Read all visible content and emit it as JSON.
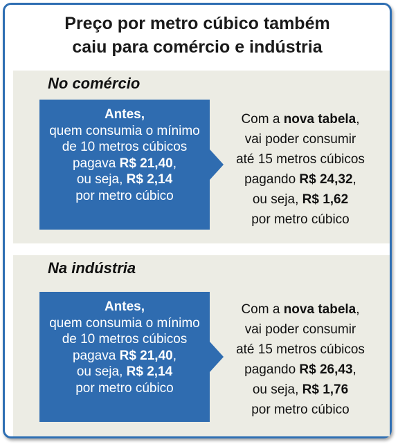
{
  "title": {
    "line1": "Preço por metro cúbico também",
    "line2": "caiu para comércio e indústria"
  },
  "sections": [
    {
      "heading": "No comércio",
      "before": {
        "antes": "Antes,",
        "l2": "quem consumia o mínimo",
        "l3": "de 10 metros cúbicos",
        "l4_pre": "pagava ",
        "l4_value": "R$ 21,40",
        "l4_post": ",",
        "l5_pre": "ou seja, ",
        "l5_value": "R$ 2,14",
        "l6": "por metro cúbico"
      },
      "after": {
        "l1_pre": "Com a ",
        "l1_bold": "nova tabela",
        "l1_post": ",",
        "l2": "vai poder consumir",
        "l3": "até 15 metros cúbicos",
        "l4_pre": "pagando ",
        "l4_value": "R$ 24,32",
        "l4_post": ",",
        "l5_pre": "ou seja, ",
        "l5_value": "R$ 1,62",
        "l6": "por metro cúbico"
      }
    },
    {
      "heading": "Na indústria",
      "before": {
        "antes": "Antes,",
        "l2": "quem consumia o mínimo",
        "l3": "de 10 metros cúbicos",
        "l4_pre": "pagava ",
        "l4_value": "R$ 21,40",
        "l4_post": ",",
        "l5_pre": "ou seja, ",
        "l5_value": "R$ 2,14",
        "l6": "por metro cúbico"
      },
      "after": {
        "l1_pre": "Com a ",
        "l1_bold": "nova tabela",
        "l1_post": ",",
        "l2": "vai poder consumir",
        "l3": "até 15 metros cúbicos",
        "l4_pre": "pagando ",
        "l4_value": "R$ 26,43",
        "l4_post": ",",
        "l5_pre": "ou seja, ",
        "l5_value": "R$ 1,76",
        "l6": "por metro cúbico"
      }
    }
  ],
  "colors": {
    "border": "#2f6fb3",
    "box": "#2f6cb0",
    "panel": "#ecece4"
  }
}
